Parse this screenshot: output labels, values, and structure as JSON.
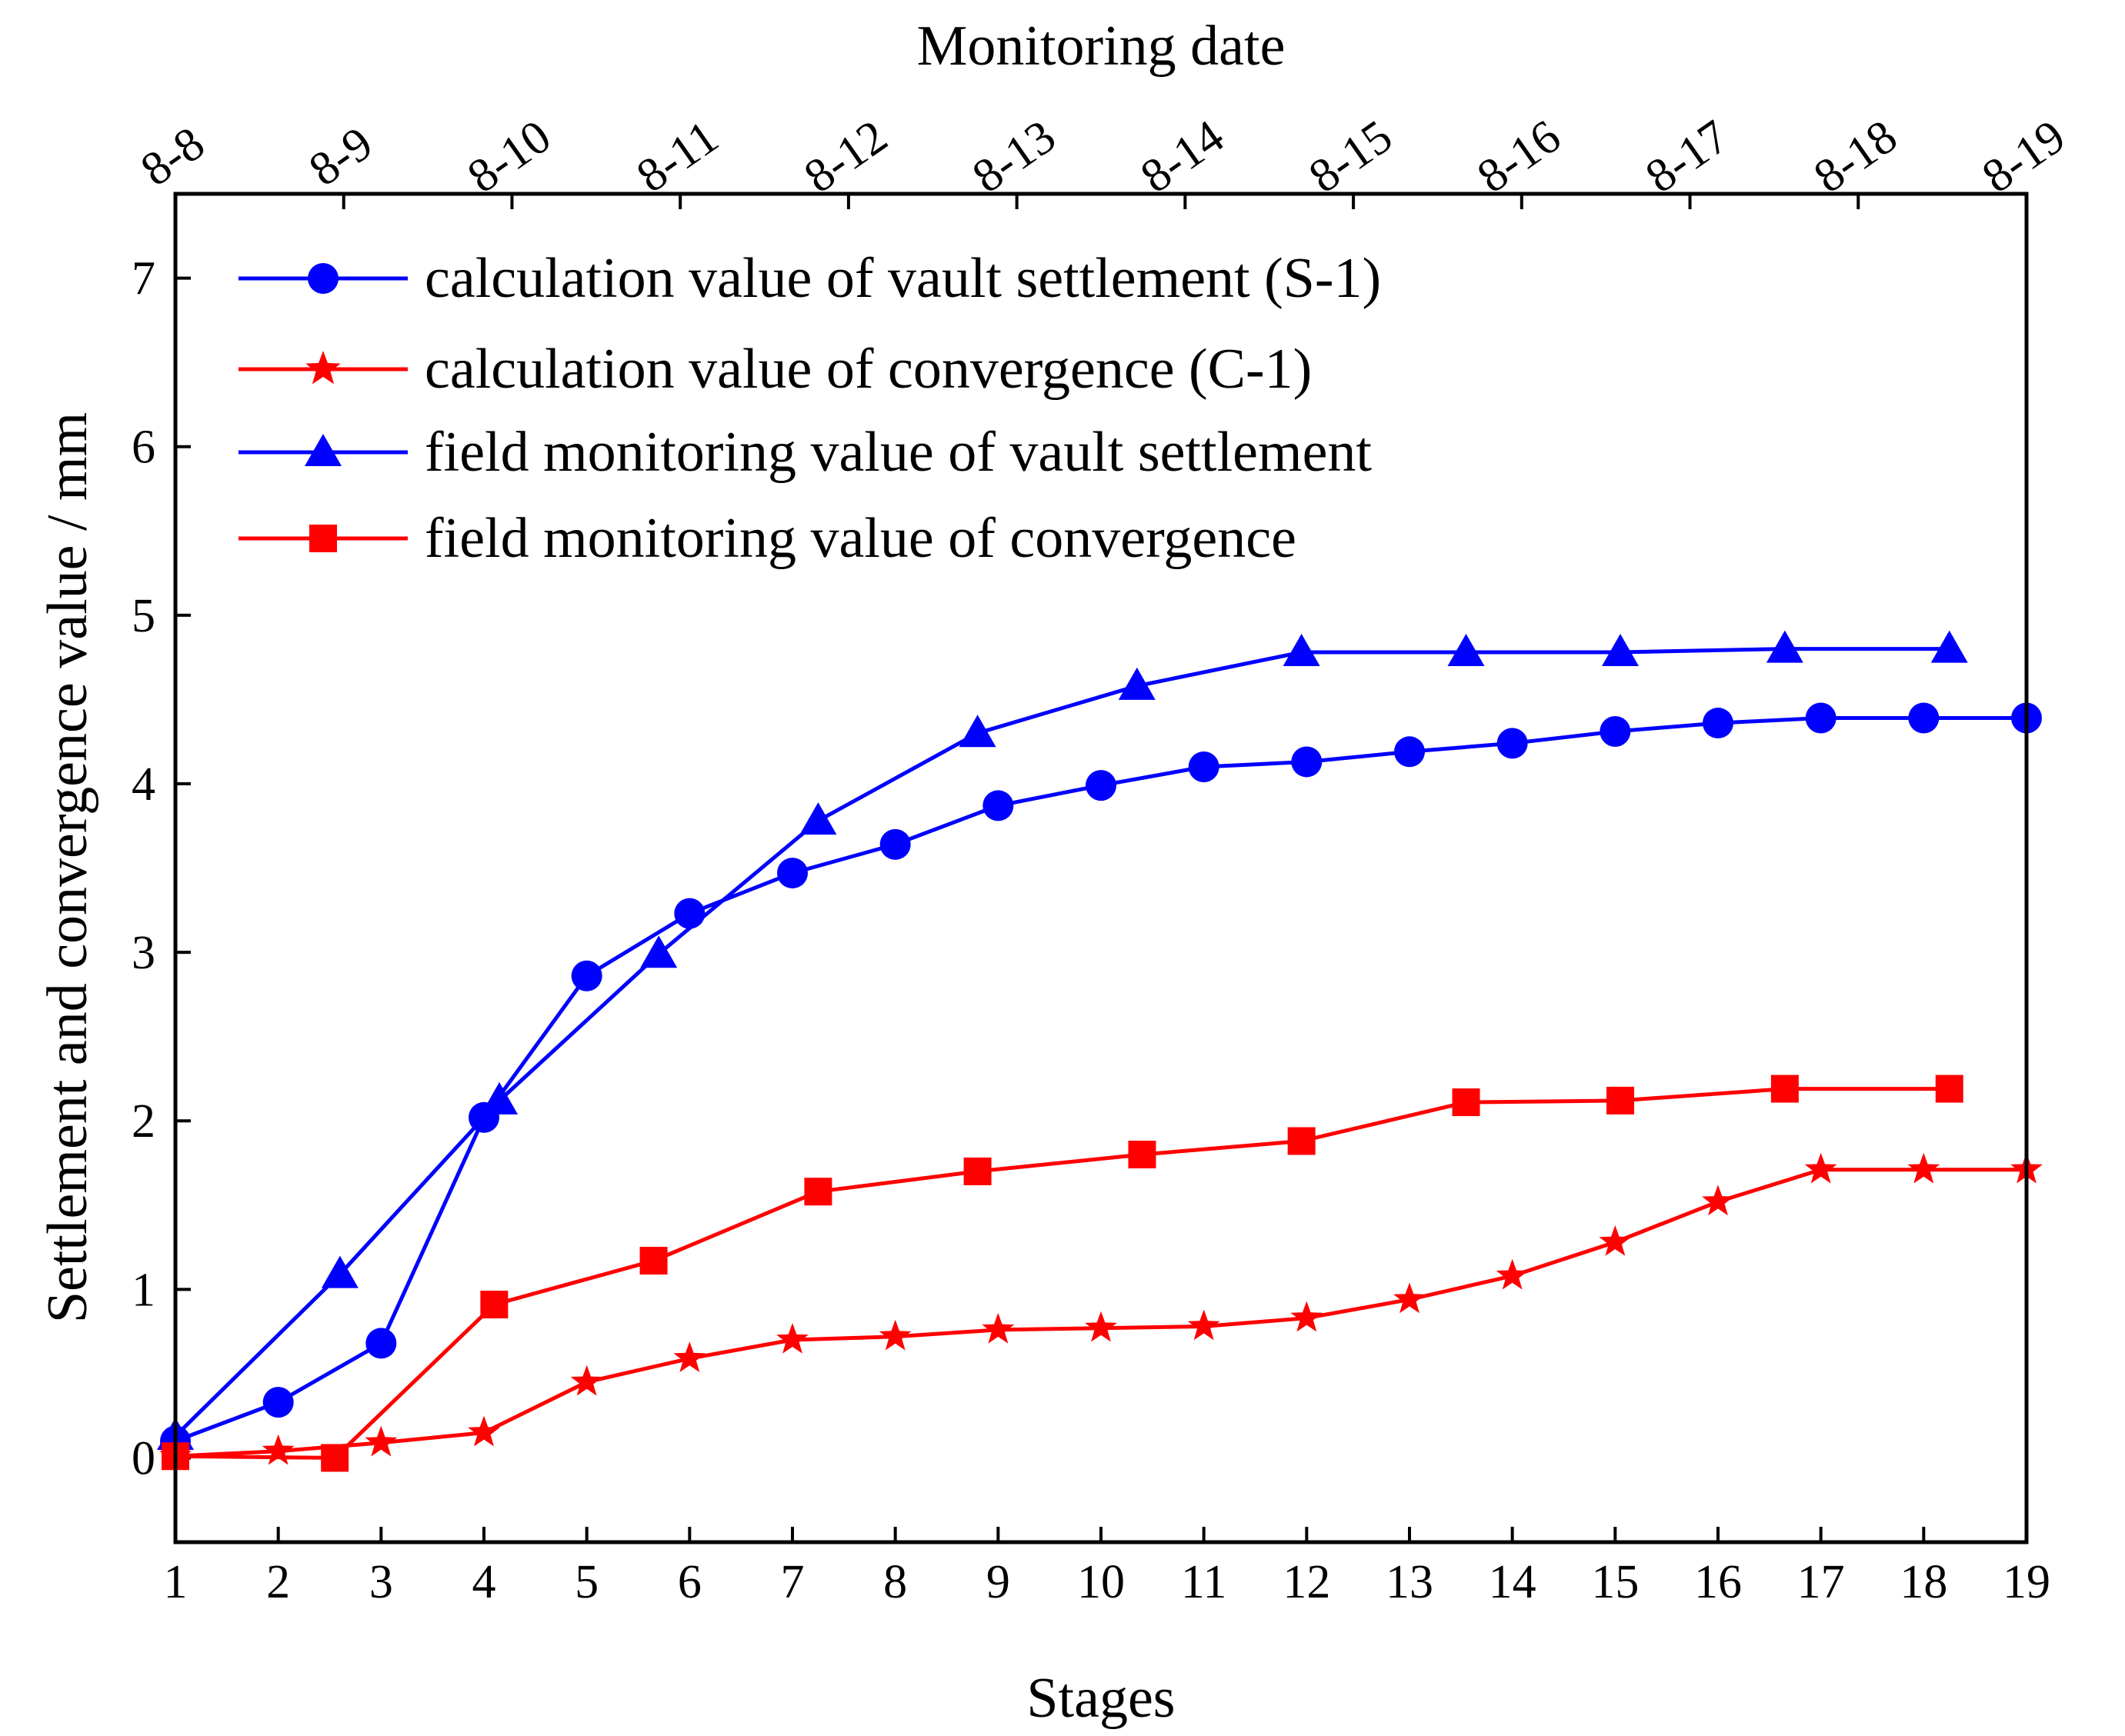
{
  "chart_data": {
    "type": "line",
    "xlabel": "Stages",
    "ylabel": "Settlement and convergence value / mm",
    "top_xlabel": "Monitoring date",
    "xlim": [
      1,
      19
    ],
    "ylim": [
      -0.5,
      7.5
    ],
    "x_ticks": [
      1,
      2,
      3,
      4,
      5,
      6,
      7,
      8,
      9,
      10,
      11,
      12,
      13,
      14,
      15,
      16,
      17,
      18,
      19
    ],
    "y_ticks": [
      0,
      1,
      2,
      3,
      4,
      5,
      6,
      7
    ],
    "top_ticks": [
      "8-8",
      "8-9",
      "8-10",
      "8-11",
      "8-12",
      "8-13",
      "8-14",
      "8-15",
      "8-16",
      "8-17",
      "8-18",
      "8-19"
    ],
    "legend_position": "top-left",
    "series": [
      {
        "name": "calculation value of vault settlement (S-1)",
        "color": "#0000ff",
        "marker": "circle",
        "x": [
          1,
          2,
          3,
          4,
          5,
          6,
          7,
          8,
          9,
          10,
          11,
          12,
          13,
          14,
          15,
          16,
          17,
          18,
          19
        ],
        "values": [
          0.1,
          0.33,
          0.68,
          2.02,
          2.86,
          3.23,
          3.47,
          3.64,
          3.87,
          3.99,
          4.1,
          4.13,
          4.19,
          4.24,
          4.31,
          4.36,
          4.39,
          4.39,
          4.39
        ]
      },
      {
        "name": "calculation value of convergence (C-1)",
        "color": "#ff0000",
        "marker": "star",
        "x": [
          1,
          2,
          3,
          4,
          5,
          6,
          7,
          8,
          9,
          10,
          11,
          12,
          13,
          14,
          15,
          16,
          17,
          18,
          19
        ],
        "values": [
          0.01,
          0.04,
          0.09,
          0.15,
          0.45,
          0.59,
          0.7,
          0.72,
          0.76,
          0.77,
          0.78,
          0.83,
          0.94,
          1.08,
          1.28,
          1.52,
          1.71,
          1.71,
          1.71
        ]
      },
      {
        "name": "field monitoring value of vault settlement",
        "color": "#0000ff",
        "marker": "triangle",
        "x": [
          1,
          2.6,
          4.15,
          5.7,
          7.25,
          8.8,
          10.35,
          11.95,
          13.55,
          15.05,
          16.65,
          18.25
        ],
        "values": [
          0.13,
          1.09,
          2.12,
          2.99,
          3.78,
          4.3,
          4.58,
          4.78,
          4.78,
          4.78,
          4.8,
          4.8
        ]
      },
      {
        "name": "field monitoring value of convergence",
        "color": "#ff0000",
        "marker": "square",
        "x": [
          1,
          2.55,
          4.1,
          5.65,
          7.25,
          8.8,
          10.4,
          11.95,
          13.55,
          15.05,
          16.65,
          18.25
        ],
        "values": [
          0.01,
          0.0,
          0.91,
          1.17,
          1.58,
          1.7,
          1.8,
          1.88,
          2.11,
          2.12,
          2.19,
          2.19
        ]
      }
    ]
  }
}
